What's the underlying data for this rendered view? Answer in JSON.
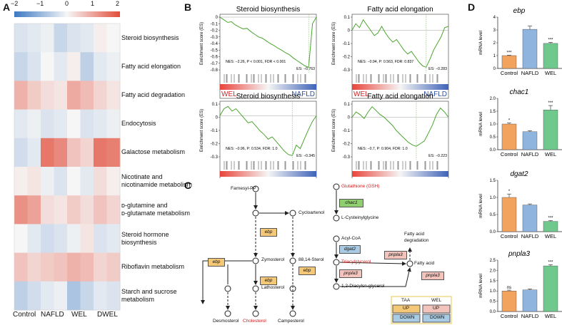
{
  "panels": {
    "a": "A",
    "b": "B",
    "c": "C",
    "d": "D"
  },
  "heatmap": {
    "colorbar_ticks": [
      "−2",
      "−1",
      "0",
      "1",
      "2"
    ],
    "columns": [
      "Control",
      "NAFLD",
      "WEL",
      "DWEL"
    ],
    "rows": [
      {
        "label": "Steroid biosynthesis"
      },
      {
        "label": "Fatty acid elongation"
      },
      {
        "label": "Fatty acid degradation"
      },
      {
        "label": "Endocytosis"
      },
      {
        "label": "Galactose metabolism"
      },
      {
        "label": "Nicotinate and nicotinamide metabolism"
      },
      {
        "label": "D-glutamine and D-glutamate metabolism"
      },
      {
        "label": "Steroid hormone biosynthesis"
      },
      {
        "label": "Riboflavin metabolism"
      },
      {
        "label": "Starch and sucrose metabolism"
      }
    ],
    "row_label_lines": [
      [
        "Steroid biosynthesis"
      ],
      [
        "Fatty acid elongation"
      ],
      [
        "Fatty acid degradation"
      ],
      [
        "Endocytosis"
      ],
      [
        "Galactose metabolism"
      ],
      [
        "Nicotinate and",
        "nicotinamide metabolism"
      ],
      [
        "ᴅ-glutamine and",
        "ᴅ-glutamate metabolism"
      ],
      [
        "Steroid hormone",
        "biosynthesis"
      ],
      [
        "Riboflavin metabolism"
      ],
      [
        "Starch and sucrose",
        "metabolism"
      ]
    ],
    "values": [
      [
        -0.3,
        -0.2,
        -0.1,
        -0.5,
        -0.3,
        -0.2,
        0.1,
        0.0
      ],
      [
        -0.5,
        -0.3,
        0.0,
        -0.2,
        0.1,
        -0.6,
        -0.2,
        -0.1
      ],
      [
        0.8,
        0.5,
        0.3,
        0.2,
        0.9,
        0.7,
        0.4,
        0.2
      ],
      [
        -0.2,
        -0.1,
        -0.3,
        -0.2,
        0.0,
        -0.3,
        -0.2,
        -0.1
      ],
      [
        -0.4,
        -0.2,
        1.5,
        1.3,
        0.6,
        0.4,
        1.5,
        1.4
      ],
      [
        0.1,
        0.2,
        -0.1,
        -0.3,
        0.0,
        -0.2,
        0.3,
        0.1
      ],
      [
        1.2,
        1.0,
        0.3,
        0.2,
        0.5,
        0.3,
        0.6,
        0.4
      ],
      [
        0.0,
        -0.2,
        -0.4,
        -0.3,
        -0.1,
        0.2,
        -0.3,
        -0.2
      ],
      [
        0.6,
        0.4,
        0.5,
        0.6,
        0.8,
        0.7,
        0.4,
        0.5
      ],
      [
        -0.6,
        -0.4,
        -0.2,
        -0.1,
        -0.8,
        -0.5,
        -0.2,
        -0.3
      ]
    ]
  },
  "gsea": [
    {
      "title": "Steroid biosynthesis",
      "ylabel": "Enrichment score (ES)",
      "yticks": [
        "0",
        "-0.1",
        "-0.2",
        "-0.3",
        "-0.4",
        "-0.5",
        "-0.6",
        "-0.7",
        "-0.8"
      ],
      "ymin": -0.8,
      "ymax": 0,
      "stats": "NES: −2.26, P < 0.001, FDR < 0.001",
      "es": "ES: −0.763",
      "left": "WEL",
      "right": "NAFLD",
      "curve": [
        0,
        -0.04,
        -0.08,
        -0.07,
        -0.12,
        -0.15,
        -0.18,
        -0.17,
        -0.22,
        -0.26,
        -0.3,
        -0.32,
        -0.36,
        -0.4,
        -0.43,
        -0.47,
        -0.5,
        -0.54,
        -0.57,
        -0.62,
        -0.66,
        -0.7,
        -0.74,
        -0.76,
        -0.1,
        0
      ]
    },
    {
      "title": "Fatty acid elongation",
      "ylabel": "Enrichment score (ES)",
      "yticks": [
        "0.1",
        "0",
        "-0.1",
        "-0.2",
        "-0.3"
      ],
      "ymin": -0.3,
      "ymax": 0.1,
      "stats": "NES: −0.94, P: 0.563, FDR: 0.837",
      "es": "ES: −0.283",
      "left": "WEL",
      "right": "NAFLD",
      "curve": [
        0,
        0.05,
        0.02,
        0.08,
        0.04,
        0.0,
        -0.04,
        -0.02,
        0.03,
        -0.02,
        -0.06,
        -0.09,
        -0.07,
        -0.11,
        -0.15,
        -0.18,
        -0.16,
        -0.2,
        -0.24,
        -0.27,
        -0.28,
        -0.22,
        -0.15,
        -0.1,
        -0.05,
        0.02,
        0.03
      ]
    },
    {
      "title": "Steroid biosynthesis",
      "ylabel": "Enrichment score (ES)",
      "yticks": [
        "0.1",
        "0",
        "-0.1",
        "-0.2",
        "-0.3"
      ],
      "ymin": -0.35,
      "ymax": 0.1,
      "stats": "NES: −0.96, P: 0.534, FDR: 1.0",
      "es": "ES: −0.345",
      "left": "DWEL",
      "right": "NAFLD",
      "curve": [
        0,
        0.06,
        0.08,
        0.04,
        0.06,
        0.02,
        -0.02,
        -0.06,
        -0.05,
        -0.09,
        -0.13,
        -0.16,
        -0.2,
        -0.18,
        -0.22,
        -0.26,
        -0.3,
        -0.33,
        -0.34,
        -0.25,
        -0.28,
        -0.2,
        -0.12,
        -0.05,
        0.0
      ]
    },
    {
      "title": "Fatty acid elongation",
      "ylabel": "Enrichment score (ES)",
      "yticks": [
        "0.1",
        "0",
        "-0.1",
        "-0.2",
        "-0.3"
      ],
      "ymin": -0.3,
      "ymax": 0.1,
      "stats": "NES: −0.7, P: 0.904, FDR: 1.0",
      "es": "ES: −0.223",
      "left": "DWEL",
      "right": "NAFLD",
      "curve": [
        0,
        0.04,
        0.02,
        -0.01,
        0.04,
        0.08,
        0.05,
        0.02,
        0.0,
        -0.03,
        -0.06,
        -0.1,
        -0.13,
        -0.16,
        -0.19,
        -0.21,
        -0.22,
        -0.2,
        -0.18,
        -0.12,
        -0.06,
        0.02,
        0.07,
        0.04,
        0.0
      ]
    }
  ],
  "pathway": {
    "nodes": {
      "farnesyl": "Farnesyl-PP",
      "cycloartenol": "Cycloartenol",
      "zymosterol": "Zymosterol",
      "sterol8814": "88,14-Sterol",
      "lathosterol": "Lathosterol",
      "desmosterol": "Desmosterol",
      "cholesterol": "Cholesterol",
      "campesterol": "Campesterol",
      "gsh": "Glutathione (GSH)",
      "cysgly": "L-Cysteinylglycine",
      "acylcoa": "Acyl-CoA",
      "tag": "Triacylglycerol",
      "dag": "1,2-Diacylsn-glycerol",
      "fa": "Fatty acid",
      "fadeg_1": "Fatty acid",
      "fadeg_2": "degradation"
    },
    "genes": {
      "chac1": "chac1",
      "ebp1": "ebp",
      "ebp2": "ebp",
      "ebp3": "ebp",
      "ebp4": "ebp",
      "dgat2": "dgat2",
      "pnpla3a": "pnpla3",
      "pnpla3b": "pnpla3",
      "pnpla3c": "pnpla3"
    },
    "legend": {
      "taa": "TAA",
      "wel": "WEL",
      "up": "UP",
      "down": "DOWN"
    },
    "colors": {
      "up_orange": "#f5c878",
      "down_blue": "#a9cbe3",
      "red_highlight": "#d32020",
      "green_gene": "#8fcf70",
      "pink_up": "#f2c4bc"
    }
  },
  "chart_data": [
    {
      "type": "bar",
      "gene": "ebp",
      "categories": [
        "Control",
        "NAFLD",
        "WEL"
      ],
      "values": [
        1.0,
        3.05,
        1.95
      ],
      "errors": [
        0.03,
        0.25,
        0.08
      ],
      "sig": [
        "***",
        "",
        "***"
      ],
      "ylabel": "mRNA level",
      "ylim": [
        0,
        4
      ],
      "yticks": [
        "0",
        "1",
        "2",
        "3",
        "4"
      ],
      "colors": [
        "#f2a35e",
        "#8fb5de",
        "#6fc98c"
      ]
    },
    {
      "type": "bar",
      "gene": "chac1",
      "categories": [
        "Control",
        "NAFLD",
        "WEL"
      ],
      "values": [
        1.0,
        0.7,
        1.55
      ],
      "errors": [
        0.04,
        0.04,
        0.17
      ],
      "sig": [
        "*",
        "",
        "***"
      ],
      "ylabel": "mRNA level",
      "ylim": [
        0,
        2.0
      ],
      "yticks": [
        "0.0",
        "0.5",
        "1.0",
        "1.5",
        "2.0"
      ],
      "colors": [
        "#f2a35e",
        "#8fb5de",
        "#6fc98c"
      ]
    },
    {
      "type": "bar",
      "gene": "dgat2",
      "categories": [
        "Control",
        "NAFLD",
        "WEL"
      ],
      "values": [
        1.0,
        0.78,
        0.3
      ],
      "errors": [
        0.1,
        0.03,
        0.02
      ],
      "sig": [
        "*",
        "",
        "***"
      ],
      "ylabel": "mRNA level",
      "ylim": [
        0,
        1.5
      ],
      "yticks": [
        "0.0",
        "0.5",
        "1.0",
        "1.5"
      ],
      "colors": [
        "#f2a35e",
        "#8fb5de",
        "#6fc98c"
      ]
    },
    {
      "type": "bar",
      "gene": "pnpla3",
      "categories": [
        "Control",
        "NAFLD",
        "WEL"
      ],
      "values": [
        1.0,
        1.05,
        2.22
      ],
      "errors": [
        0.04,
        0.05,
        0.06
      ],
      "sig": [
        "ns",
        "",
        "***"
      ],
      "ylabel": "mRNA level",
      "ylim": [
        0,
        2.5
      ],
      "yticks": [
        "0.0",
        "0.5",
        "1.0",
        "1.5",
        "2.0",
        "2.5"
      ],
      "colors": [
        "#f2a35e",
        "#8fb5de",
        "#6fc98c"
      ]
    }
  ]
}
